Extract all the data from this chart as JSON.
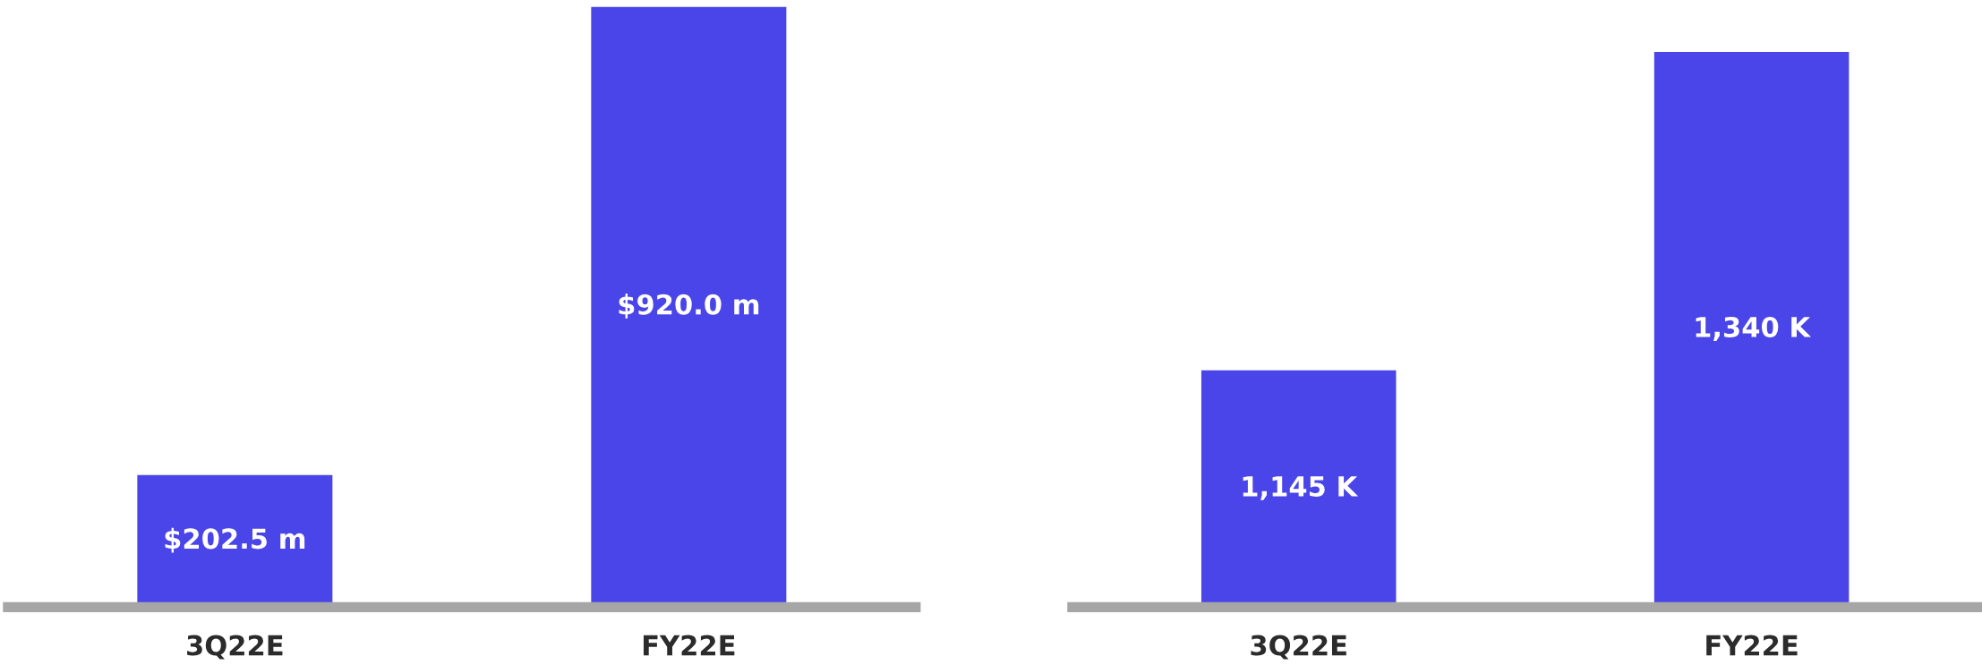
{
  "chart_data": [
    {
      "type": "bar",
      "categories": [
        "3Q22E",
        "FY22E"
      ],
      "values": [
        202.5,
        920.0
      ],
      "value_labels": [
        "$202.5 m",
        "$920.0 m"
      ],
      "color": "#4a45e8",
      "ylim": [
        0,
        920
      ],
      "tick_labels": "x"
    },
    {
      "type": "bar",
      "categories": [
        "3Q22E",
        "FY22E"
      ],
      "values": [
        1145,
        1340
      ],
      "value_labels": [
        "1,145 K",
        "1,340 K"
      ],
      "color": "#4a45e8",
      "ylim": [
        1000,
        1340
      ],
      "tick_labels": "x"
    }
  ]
}
